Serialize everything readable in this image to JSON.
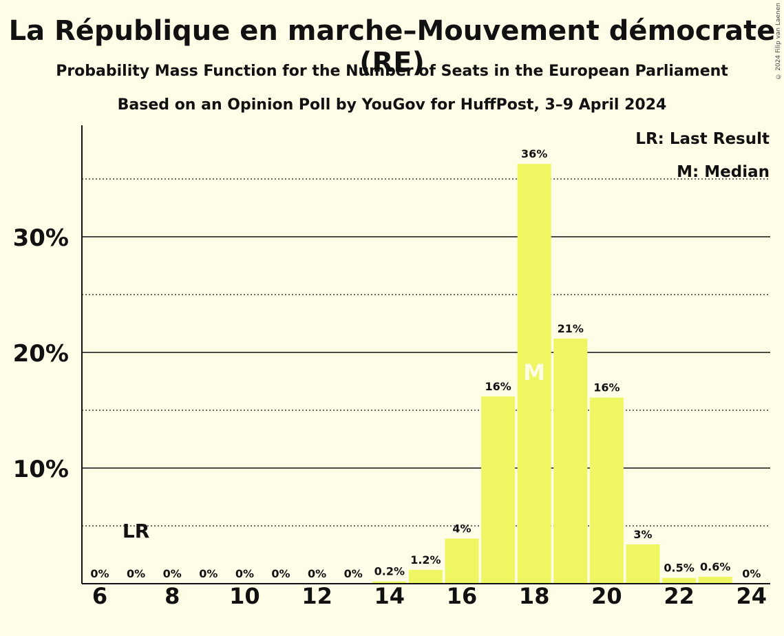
{
  "title": "La République en marche–Mouvement démocrate (RE)",
  "subtitle": "Probability Mass Function for the Number of Seats in the European Parliament",
  "subtitle2": "Based on an Opinion Poll by YouGov for HuffPost, 3–9 April 2024",
  "copyright": "© 2024 Filip van Laenen",
  "legend": {
    "last_result": "LR: Last Result",
    "median": "M: Median"
  },
  "chart_data": {
    "type": "bar",
    "categories": [
      6,
      7,
      8,
      9,
      10,
      11,
      12,
      13,
      14,
      15,
      16,
      17,
      18,
      19,
      20,
      21,
      22,
      23,
      24
    ],
    "values": [
      0,
      0,
      0,
      0,
      0,
      0,
      0,
      0,
      0.2,
      1.2,
      3.9,
      16.2,
      36.3,
      21.2,
      16.1,
      3.4,
      0.5,
      0.6,
      0
    ],
    "data_labels": [
      "0%",
      "0%",
      "0%",
      "0%",
      "0%",
      "0%",
      "0%",
      "0%",
      "0.2%",
      "1.2%",
      "4%",
      "16%",
      "36%",
      "21%",
      "16%",
      "3%",
      "0.5%",
      "0.6%",
      "0%"
    ],
    "x_tick_labels": [
      "6",
      "8",
      "10",
      "12",
      "14",
      "16",
      "18",
      "20",
      "22",
      "24"
    ],
    "y_tick_labels": [
      "10%",
      "20%",
      "30%"
    ],
    "y_major_gridlines": [
      10,
      20,
      30
    ],
    "y_minor_gridlines": [
      5,
      15,
      25,
      35
    ],
    "ylim": [
      0,
      39.5
    ],
    "last_result": {
      "seats": 7,
      "label": "LR"
    },
    "median": {
      "seats": 18,
      "label": "M"
    },
    "bar_color": "#eef761",
    "median_label_color": "#fffde7",
    "legend_position": "top-right"
  }
}
